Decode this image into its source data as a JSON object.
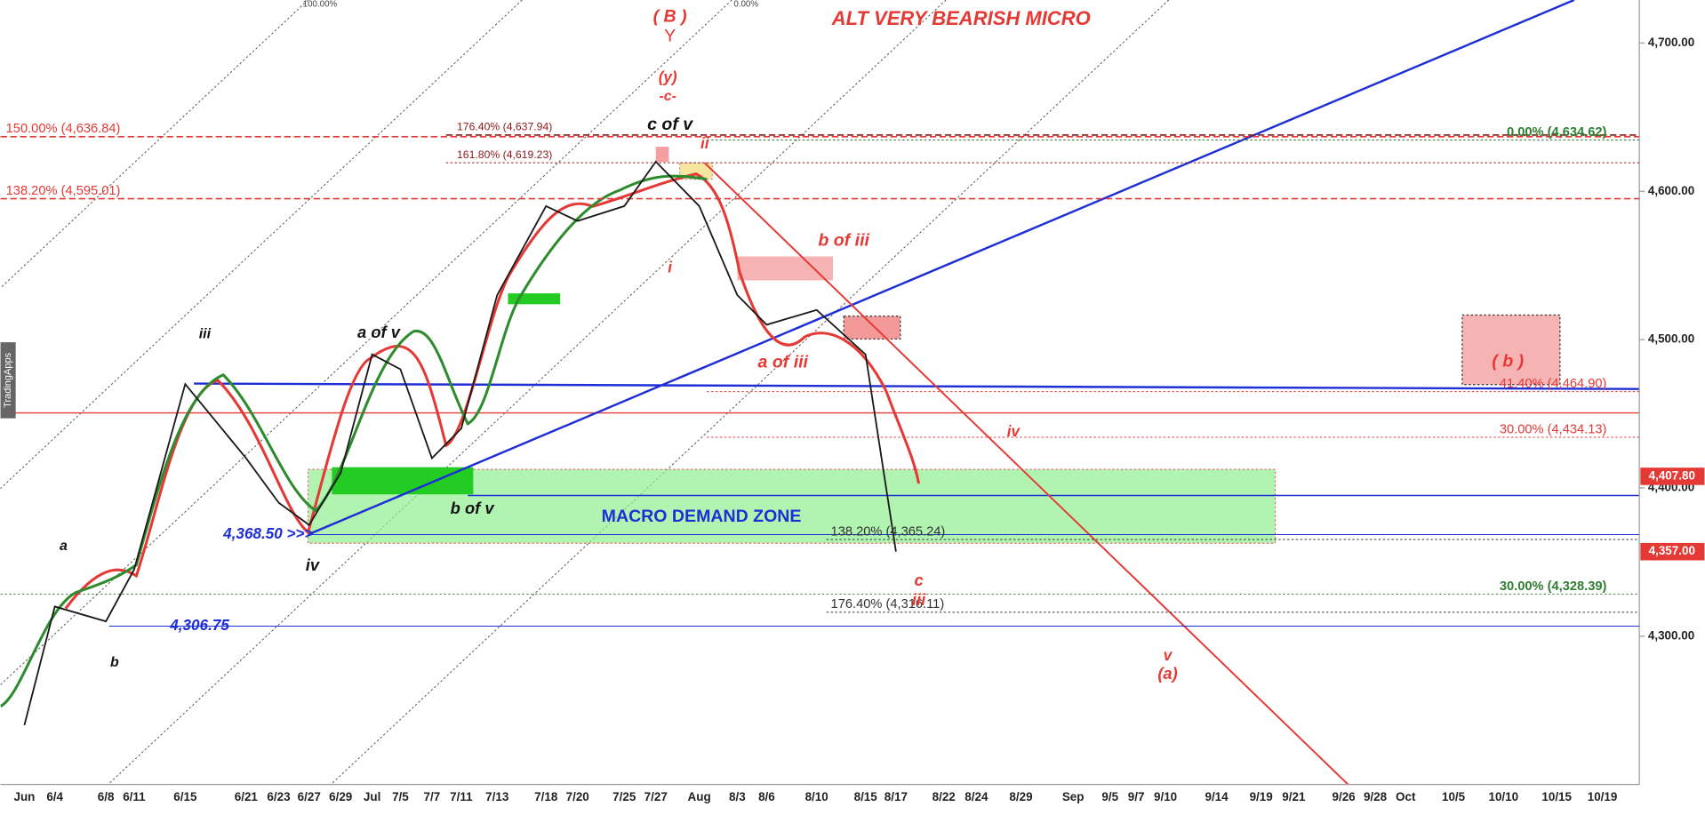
{
  "chart_data": {
    "type": "line",
    "title": "ALT VERY BEARISH MICRO",
    "categories": [
      "Jun",
      "6/4",
      "6/8",
      "6/11",
      "6/15",
      "6/21",
      "6/23",
      "6/27",
      "6/29",
      "Jul",
      "7/5",
      "7/7",
      "7/11",
      "7/13",
      "7/18",
      "7/20",
      "7/25",
      "7/27",
      "Aug",
      "8/3",
      "8/6",
      "8/10",
      "8/15",
      "8/17",
      "8/22",
      "8/24",
      "8/29",
      "Sep",
      "9/5",
      "9/7",
      "9/10",
      "9/14",
      "9/19",
      "9/21",
      "9/26",
      "9/28",
      "Oct",
      "10/5",
      "10/10",
      "10/15",
      "10/19"
    ],
    "series": [
      {
        "color": "#1a1a1a",
        "values": [
          4240,
          4320,
          4310,
          4345,
          4470,
          4420,
          4390,
          4375,
          4410,
          4490,
          4480,
          4420,
          4440,
          4530,
          4590,
          4580,
          4590,
          4620,
          4590,
          4530,
          4510,
          4520,
          4490,
          4357,
          null,
          null,
          null,
          null,
          null,
          null,
          null,
          null,
          null,
          null,
          null,
          null,
          null,
          null,
          null,
          null,
          null
        ]
      }
    ],
    "ylim": [
      4200,
      4729
    ],
    "yticks": [
      {
        "value": 4300,
        "label": "4,300.00"
      },
      {
        "value": 4400,
        "label": "4,400.00"
      },
      {
        "value": 4500,
        "label": "4,500.00"
      },
      {
        "value": 4600,
        "label": "4,600.00"
      },
      {
        "value": 4700,
        "label": "4,700.00"
      }
    ],
    "levels": [
      {
        "label": "150.00% (4,636.84)",
        "value": 4636.84,
        "color": "#e53935"
      },
      {
        "label": "138.20% (4,595.01)",
        "value": 4595.01,
        "color": "#e53935"
      },
      {
        "label": "176.40% (4,637.94)",
        "value": 4637.94,
        "color": "#8b1a1a"
      },
      {
        "label": "161.80% (4,619.23)",
        "value": 4619.23,
        "color": "#8b1a1a"
      },
      {
        "label": "0.00% (4,634.62)",
        "value": 4634.62,
        "color": "#2e7d32"
      },
      {
        "label": "41.40% (4,464.90)",
        "value": 4464.9,
        "color": "#e53935"
      },
      {
        "label": "30.00% (4,434.13)",
        "value": 4434.13,
        "color": "#e53935"
      },
      {
        "label": "138.20% (4,365.24)",
        "value": 4365.24,
        "color": "#333333"
      },
      {
        "label": "30.00% (4,328.39)",
        "value": 4328.39,
        "color": "#2e7d32"
      },
      {
        "label": "176.40% (4,316.11)",
        "value": 4316.11,
        "color": "#333333"
      },
      {
        "label": "4,368.50 >>>",
        "value": 4368.5,
        "color": "#1f2fd6"
      },
      {
        "label": "4,306.75",
        "value": 4306.75,
        "color": "#1f2fd6"
      }
    ],
    "price_tags": [
      {
        "label": "4,407.80",
        "value": 4407.8
      },
      {
        "label": "4,357.00",
        "value": 4357.0
      }
    ],
    "annotations": [
      "( B )",
      "Y",
      "(y)",
      "-c-",
      "c of v",
      "ii",
      "i",
      "b of iii",
      "a of iii",
      "iii",
      "a of v",
      "b of v",
      "iv",
      "a",
      "b",
      "iv",
      "c",
      "iii",
      "v",
      "(a)",
      "( b )",
      "MACRO DEMAND ZONE",
      "100.00%",
      "0.00%",
      "TradingApps"
    ]
  }
}
